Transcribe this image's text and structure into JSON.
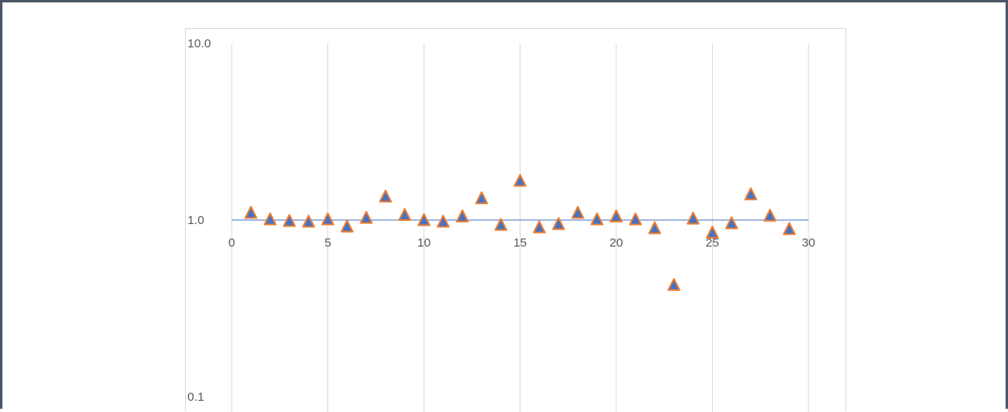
{
  "chart_data": {
    "type": "scatter",
    "title": "",
    "xlabel": "",
    "ylabel": "",
    "xlim": [
      0,
      30
    ],
    "ylim": [
      0.1,
      10
    ],
    "yscale": "log",
    "x_ticks": [
      "0",
      "5",
      "10",
      "15",
      "20",
      "25",
      "30"
    ],
    "y_ticks": [
      "10.0",
      "1.0",
      "0.1"
    ],
    "grid": "vertical",
    "legend": "none",
    "marker": "triangle",
    "colors": {
      "marker_fill": "#4472c4",
      "marker_edge": "#ed7d31",
      "axis_line": "#4472c4",
      "gridline": "#d9d9d9",
      "frame_border": "#4a5866"
    },
    "series": [
      {
        "x": [
          1,
          2,
          3,
          4,
          5,
          6,
          7,
          8,
          9,
          10,
          11,
          12,
          13,
          14,
          15,
          16,
          17,
          18,
          19,
          20,
          21,
          22,
          23,
          24,
          25,
          26,
          27,
          28,
          29
        ],
        "y": [
          1.1,
          1.01,
          0.99,
          0.98,
          1.01,
          0.92,
          1.03,
          1.36,
          1.07,
          1.0,
          0.98,
          1.05,
          1.33,
          0.94,
          1.67,
          0.91,
          0.95,
          1.1,
          1.01,
          1.05,
          1.01,
          0.9,
          0.43,
          1.02,
          0.85,
          0.96,
          1.4,
          1.06,
          0.89
        ]
      }
    ]
  }
}
